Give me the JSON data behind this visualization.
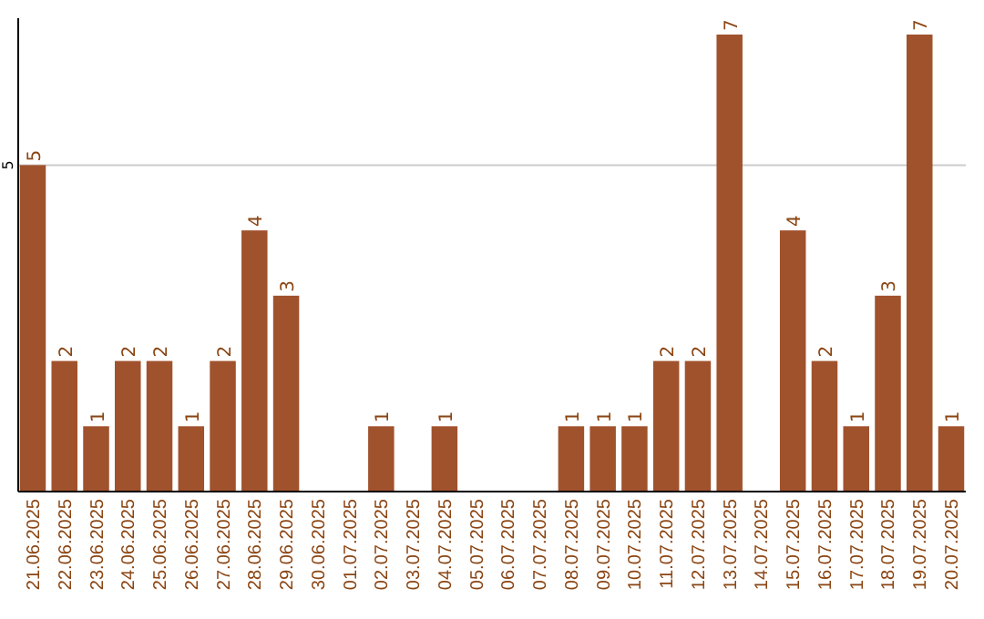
{
  "chart_data": {
    "type": "bar",
    "categories": [
      "21.06.2025",
      "22.06.2025",
      "23.06.2025",
      "24.06.2025",
      "25.06.2025",
      "26.06.2025",
      "27.06.2025",
      "28.06.2025",
      "29.06.2025",
      "30.06.2025",
      "01.07.2025",
      "02.07.2025",
      "03.07.2025",
      "04.07.2025",
      "05.07.2025",
      "06.07.2025",
      "07.07.2025",
      "08.07.2025",
      "09.07.2025",
      "10.07.2025",
      "11.07.2025",
      "12.07.2025",
      "13.07.2025",
      "14.07.2025",
      "15.07.2025",
      "16.07.2025",
      "17.07.2025",
      "18.07.2025",
      "19.07.2025",
      "20.07.2025"
    ],
    "values": [
      5,
      2,
      1,
      2,
      2,
      1,
      2,
      4,
      3,
      0,
      0,
      1,
      0,
      1,
      0,
      0,
      0,
      1,
      1,
      1,
      2,
      2,
      7,
      0,
      4,
      2,
      1,
      3,
      7,
      1
    ],
    "value_labels": [
      "5",
      "2",
      "1",
      "2",
      "2",
      "1",
      "2",
      "4",
      "3",
      null,
      null,
      "1",
      null,
      "1",
      null,
      null,
      null,
      "1",
      "1",
      "1",
      "2",
      "2",
      "7",
      null,
      "4",
      "2",
      "1",
      "3",
      "7",
      "1"
    ],
    "color": "#a0522d",
    "ylim": [
      0,
      7.25
    ],
    "yticks": [
      5
    ],
    "grid": "y"
  }
}
